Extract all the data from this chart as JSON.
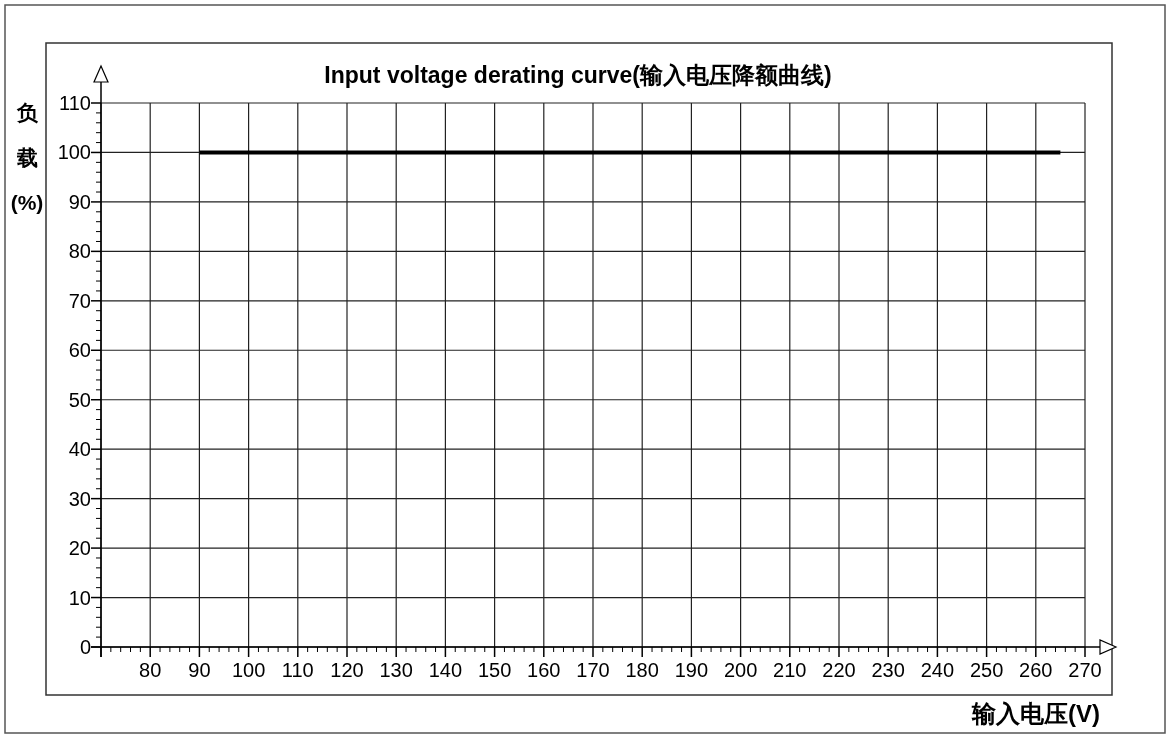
{
  "chart_data": {
    "type": "line",
    "title": "Input voltage derating curve(输入电压降额曲线)",
    "xlabel": "输入电压(V)",
    "ylabel": "负载(%)",
    "xlim": [
      70,
      270
    ],
    "ylim": [
      0,
      110
    ],
    "xticks": [
      {
        "value": 70,
        "label": null
      },
      80,
      90,
      100,
      110,
      120,
      130,
      140,
      150,
      160,
      170,
      180,
      190,
      200,
      210,
      220,
      230,
      240,
      250,
      260,
      270
    ],
    "yticks": [
      0,
      10,
      20,
      30,
      40,
      50,
      60,
      70,
      80,
      90,
      100,
      110
    ],
    "grid": true,
    "marker": "none",
    "line_style": "solid",
    "series": [
      {
        "color": "#000000",
        "x": [
          90,
          265
        ],
        "values": [
          100,
          100
        ]
      }
    ]
  }
}
